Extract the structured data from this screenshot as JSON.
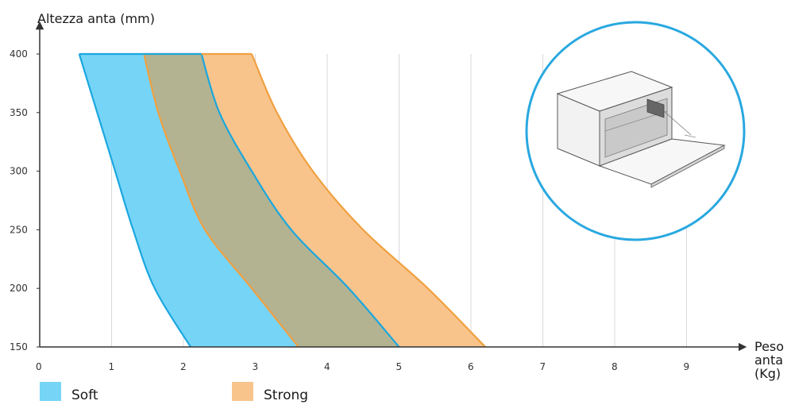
{
  "chart_data": {
    "type": "area",
    "ylabel": "Altezza anta (mm)",
    "xlabel": "Peso anta (Kg)",
    "xlabel_lines": [
      "Peso",
      "anta",
      "(Kg)"
    ],
    "xlim": [
      0,
      9.5
    ],
    "ylim": [
      150,
      400
    ],
    "x_ticks": [
      0,
      1,
      2,
      3,
      4,
      5,
      6,
      7,
      8,
      9
    ],
    "y_ticks": [
      150,
      200,
      250,
      300,
      350,
      400
    ],
    "grid": "vertical",
    "legend_position": "bottom-left",
    "series": [
      {
        "name": "Soft",
        "fill": "#76d4f7",
        "stroke": "#1aa7df",
        "left_edge": [
          [
            2.1,
            150
          ],
          [
            1.6,
            200
          ],
          [
            1.3,
            250
          ],
          [
            1.05,
            300
          ],
          [
            0.8,
            350
          ],
          [
            0.55,
            400
          ]
        ],
        "right_edge": [
          [
            5.0,
            150
          ],
          [
            4.3,
            200
          ],
          [
            3.5,
            250
          ],
          [
            2.95,
            300
          ],
          [
            2.5,
            350
          ],
          [
            2.25,
            400
          ]
        ]
      },
      {
        "name": "Strong",
        "fill": "#f8c48c",
        "stroke": "#f0a040",
        "left_edge": [
          [
            3.6,
            150
          ],
          [
            2.95,
            200
          ],
          [
            2.3,
            250
          ],
          [
            1.95,
            300
          ],
          [
            1.65,
            350
          ],
          [
            1.45,
            400
          ]
        ],
        "right_edge": [
          [
            6.2,
            150
          ],
          [
            5.4,
            200
          ],
          [
            4.5,
            250
          ],
          [
            3.8,
            300
          ],
          [
            3.3,
            350
          ],
          [
            2.95,
            400
          ]
        ]
      }
    ],
    "overlap_fill": "#b3b391"
  },
  "legend": {
    "items": [
      {
        "label": "Soft",
        "color": "#76d4f7"
      },
      {
        "label": "Strong",
        "color": "#f8c48c"
      }
    ]
  },
  "inset": {
    "icon": "cabinet-flap-door-illustration",
    "circle_color": "#29a8e0"
  }
}
